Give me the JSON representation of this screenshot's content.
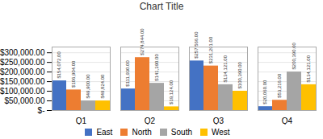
{
  "chart_data": {
    "type": "bar",
    "title": "Chart Title",
    "categories": [
      "Q1",
      "Q2",
      "Q3",
      "Q4"
    ],
    "series": [
      {
        "name": "East",
        "color": "#4472C4",
        "values": [
          154072,
          111930,
          257566,
          20060
        ],
        "value_labels": [
          "$154,072.00",
          "$111,930.00",
          "$257,566.00",
          "$20,060.00"
        ]
      },
      {
        "name": "North",
        "color": "#ED7D31",
        "values": [
          106904,
          274844,
          231291,
          53216
        ],
        "value_labels": [
          "$106,904.00",
          "$274,844.00",
          "$231,291.00",
          "$53,216.00"
        ]
      },
      {
        "name": "South",
        "color": "#A5A5A5",
        "values": [
          49900,
          141390,
          134121,
          200390
        ],
        "value_labels": [
          "$49,900.00",
          "$141,390.00",
          "$134,121.00",
          "$200,390.00"
        ]
      },
      {
        "name": "West",
        "color": "#FFC000",
        "values": [
          49824,
          19124,
          100390,
          134121
        ],
        "value_labels": [
          "$49,824.00",
          "$19,124.00",
          "$100,390.00",
          "$134,121.00"
        ]
      }
    ],
    "ylim": [
      0,
      330000
    ],
    "yticks": [
      {
        "value": 0,
        "label": "$-"
      },
      {
        "value": 50000,
        "label": "$50,000.00"
      },
      {
        "value": 100000,
        "label": "$100,000.00"
      },
      {
        "value": 150000,
        "label": "$150,000.00"
      },
      {
        "value": 200000,
        "label": "$200,000.00"
      },
      {
        "value": 250000,
        "label": "$250,000.00"
      },
      {
        "value": 300000,
        "label": "$300,000.00"
      }
    ],
    "grid": true,
    "data_labels": true,
    "legend": "bottom"
  }
}
